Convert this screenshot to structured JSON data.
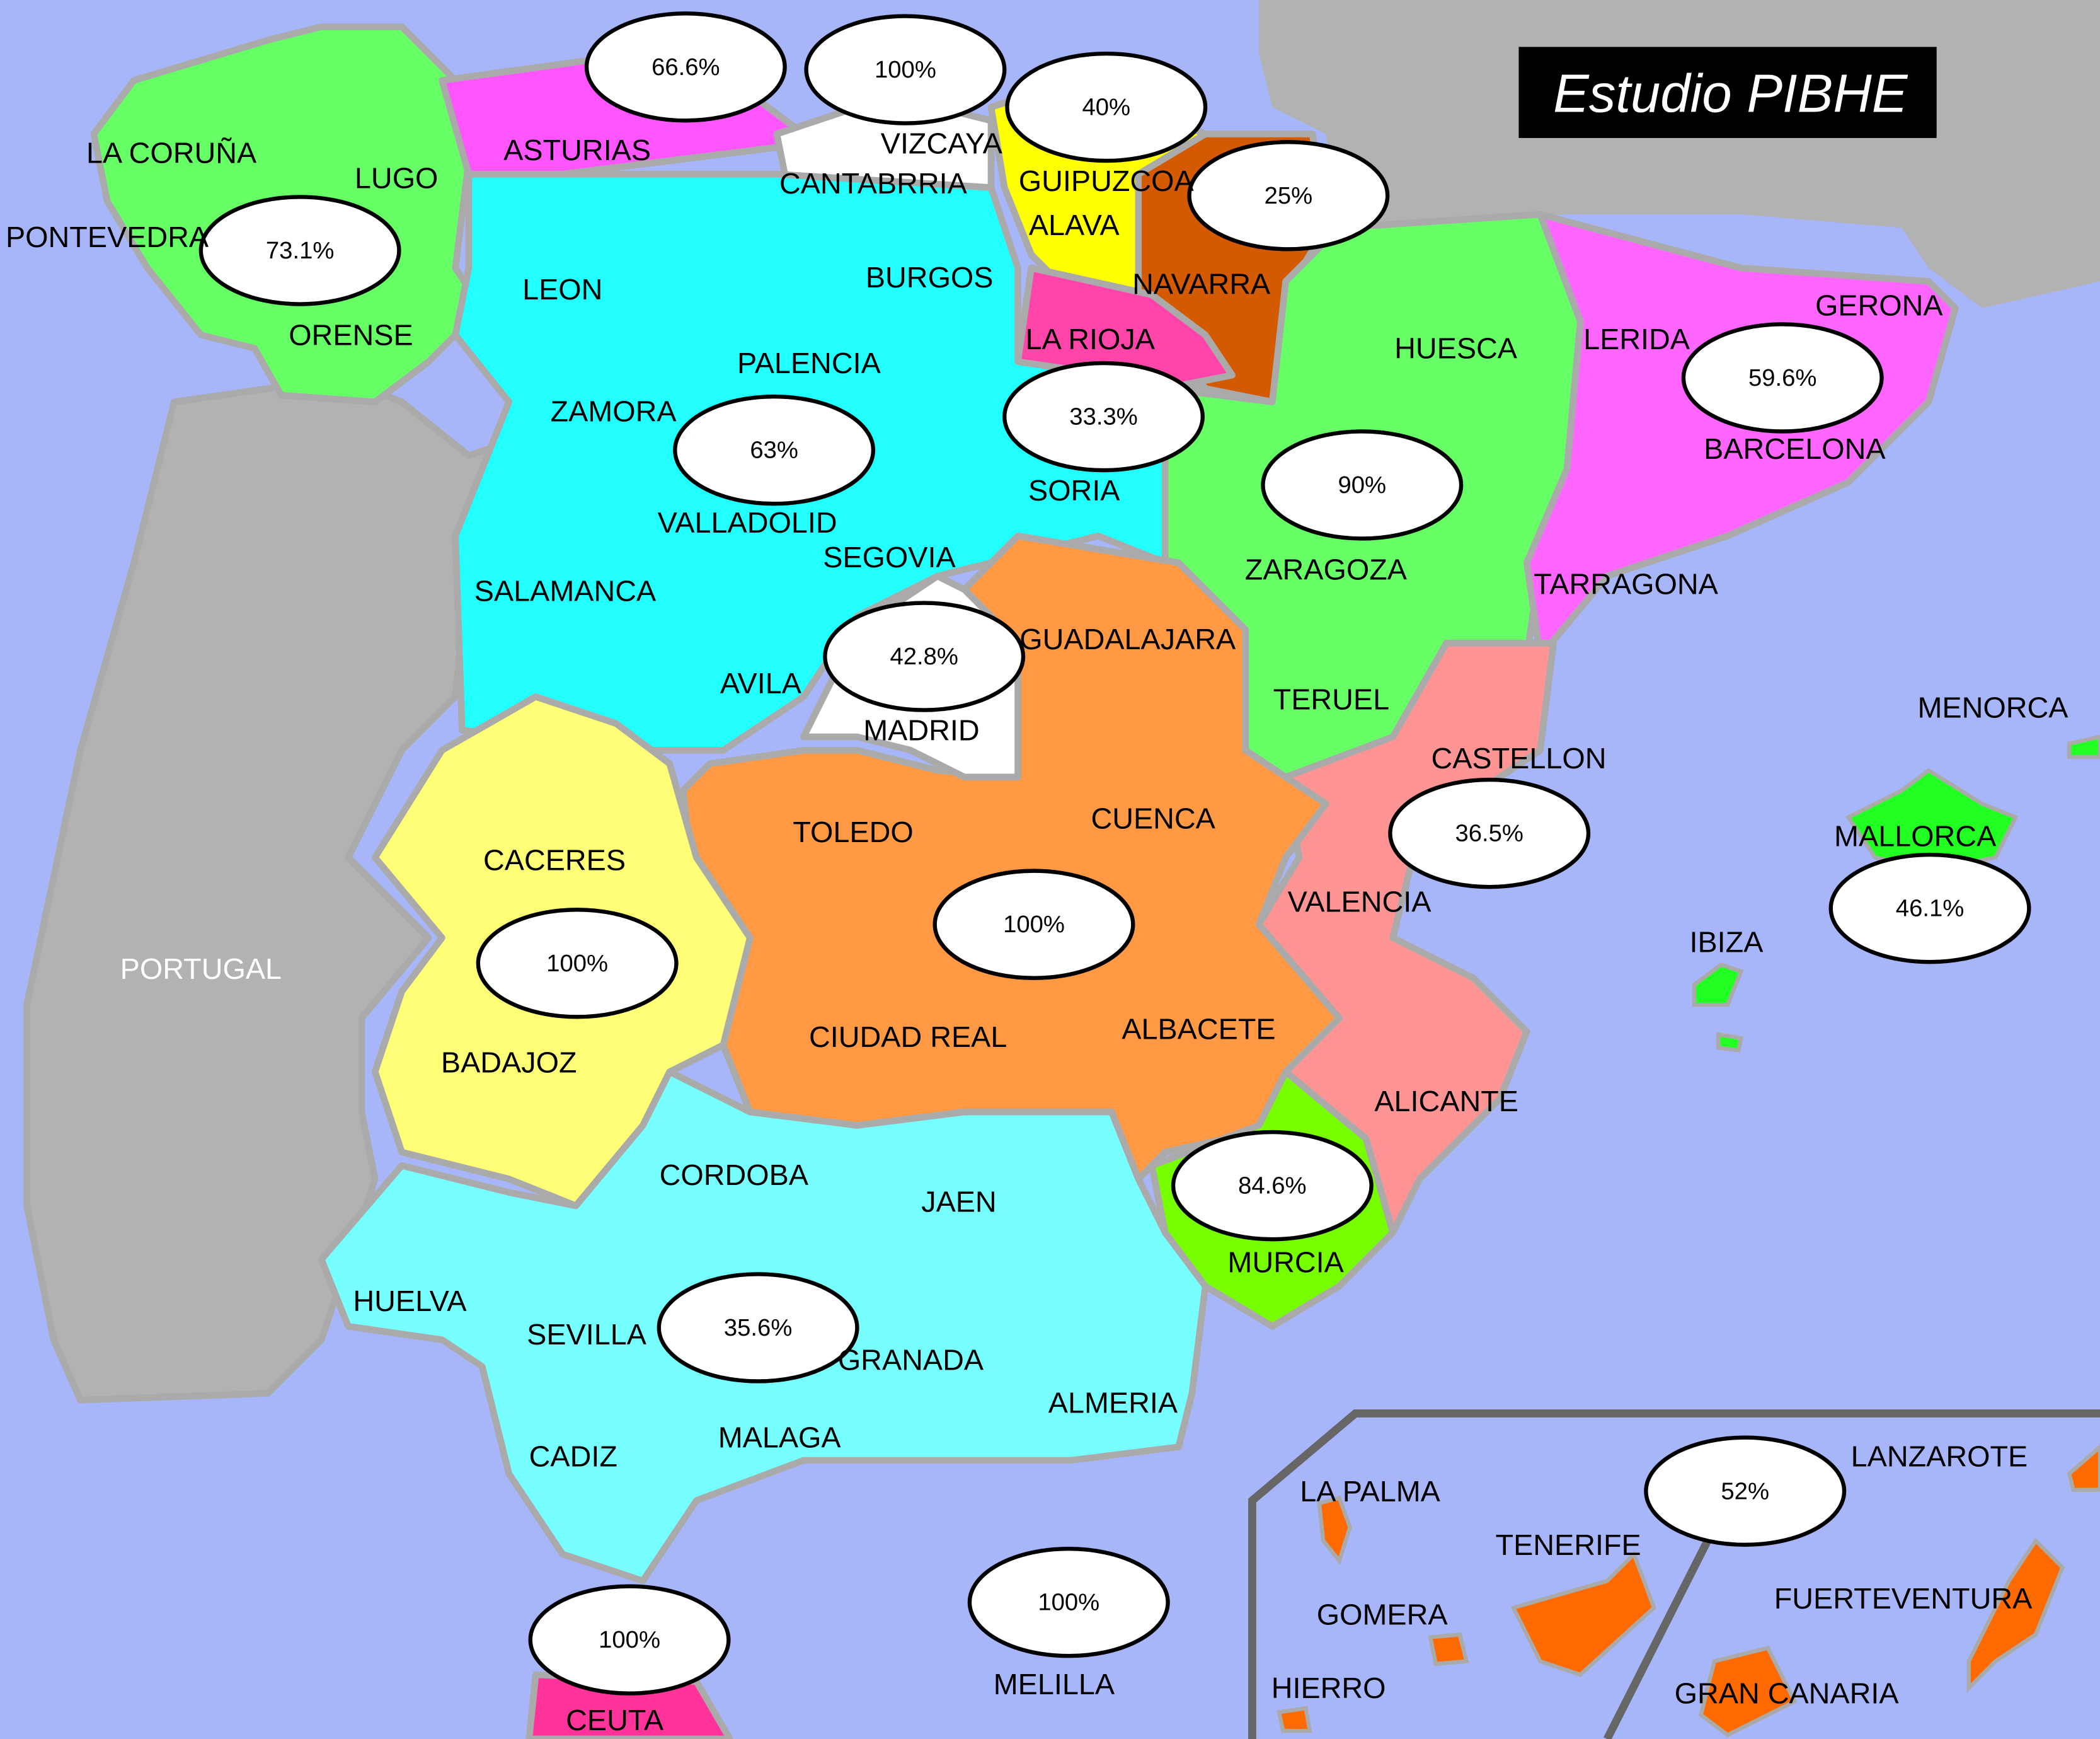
{
  "title": "Estudio PIBHE",
  "colors": {
    "sea": "#a7b6f9",
    "land_other": "#b2b2b2",
    "galicia": "#66ff66",
    "asturias": "#ff55ff",
    "cantabria": "#ffffff",
    "pais_vasco": "#ffff00",
    "navarra": "#d45a00",
    "la_rioja": "#ff44aa",
    "castilla_leon": "#22ffff",
    "aragon": "#66ff66",
    "cataluna": "#ff66ff",
    "madrid": "#ffffff",
    "castilla_la_mancha": "#ff9944",
    "extremadura": "#ffff77",
    "valencia": "#ff9494",
    "murcia": "#77ff00",
    "andalucia": "#77ffff",
    "ceuta": "#ff3399",
    "baleares": "#22ff22",
    "canarias": "#ff6a00"
  },
  "labels": [
    "LA CORUÑA",
    "LUGO",
    "PONTEVEDRA",
    "ORENSE",
    "ASTURIAS",
    "CANTABRRIA",
    "VIZCAYA",
    "GUIPUZCOA",
    "ALAVA",
    "NAVARRA",
    "LA RIOJA",
    "LEON",
    "BURGOS",
    "PALENCIA",
    "ZAMORA",
    "VALLADOLID",
    "SORIA",
    "SEGOVIA",
    "SALAMANCA",
    "AVILA",
    "MADRID",
    "GUADALAJARA",
    "HUESCA",
    "ZARAGOZA",
    "TERUEL",
    "LERIDA",
    "GERONA",
    "BARCELONA",
    "TARRAGONA",
    "CASTELLON",
    "VALENCIA",
    "ALICANTE",
    "TOLEDO",
    "CUENCA",
    "CIUDAD REAL",
    "ALBACETE",
    "CACERES",
    "BADAJOZ",
    "PORTUGAL",
    "CORDOBA",
    "JAEN",
    "MURCIA",
    "HUELVA",
    "SEVILLA",
    "GRANADA",
    "ALMERIA",
    "CADIZ",
    "MALAGA",
    "CEUTA",
    "MELILLA",
    "MENORCA",
    "MALLORCA",
    "IBIZA",
    "LA PALMA",
    "TENERIFE",
    "LANZAROTE",
    "GOMERA",
    "FUERTEVENTURA",
    "HIERRO",
    "GRAN CANARIA"
  ],
  "percentages": [
    "66.6%",
    "100%",
    "40%",
    "25%",
    "73.1%",
    "63%",
    "33.3%",
    "90%",
    "59.6%",
    "42.8%",
    "36.5%",
    "46.1%",
    "100%",
    "100%",
    "84.6%",
    "35.6%",
    "52%",
    "100%",
    "100%"
  ]
}
